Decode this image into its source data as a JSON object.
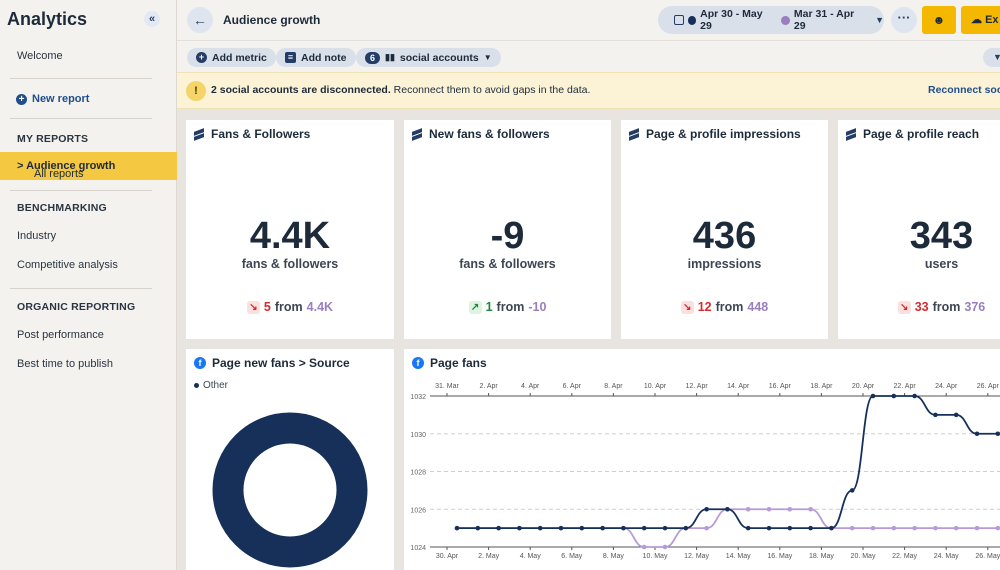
{
  "sidebar": {
    "title": "Analytics",
    "collapse_icon": "double-chevron-left-icon",
    "welcome": "Welcome",
    "new_report": "New report",
    "my_reports_heading": "MY REPORTS",
    "active_item_prefix": "All reports",
    "active_item_current": "> Audience growth",
    "benchmarking_heading": "BENCHMARKING",
    "industry": "Industry",
    "competitive": "Competitive analysis",
    "organic_heading": "ORGANIC REPORTING",
    "post_performance": "Post performance",
    "best_time": "Best time to publish"
  },
  "header": {
    "title": "Audience growth",
    "date_range_current": "Apr 30 - May 29",
    "date_range_previous": "Mar 31 - Apr 29",
    "more": "···",
    "export": "Ex"
  },
  "toolbar": {
    "add_metric": "Add metric",
    "add_note": "Add note",
    "accounts_count": "6",
    "accounts_label": "social accounts"
  },
  "alert": {
    "bold": "2 social accounts are disconnected.",
    "rest": " Reconnect them to avoid gaps in the data.",
    "link": "Reconnect socia"
  },
  "cards": [
    {
      "title": "Fans & Followers",
      "value": "4.4K",
      "unit": "fans & followers",
      "delta": "5",
      "from": "from",
      "prev": "4.4K",
      "dir": "down"
    },
    {
      "title": "New fans & followers",
      "value": "-9",
      "unit": "fans & followers",
      "delta": "1",
      "from": "from",
      "prev": "-10",
      "dir": "up"
    },
    {
      "title": "Page & profile impressions",
      "value": "436",
      "unit": "impressions",
      "delta": "12",
      "from": "from",
      "prev": "448",
      "dir": "down"
    },
    {
      "title": "Page & profile reach",
      "value": "343",
      "unit": "users",
      "delta": "33",
      "from": "from",
      "prev": "376",
      "dir": "down"
    }
  ],
  "source_card": {
    "title": "Page new fans > Source",
    "legend": "Other"
  },
  "colors": {
    "accent": "#f5c842",
    "navy": "#16305a",
    "previous": "#b79ad6"
  },
  "chart_data": {
    "type": "line",
    "title": "Page fans",
    "x_top": [
      "31. Mar",
      "2. Apr",
      "4. Apr",
      "6. Apr",
      "8. Apr",
      "10. Apr",
      "12. Apr",
      "14. Apr",
      "16. Apr",
      "18. Apr",
      "20. Apr",
      "22. Apr",
      "24. Apr",
      "26. Apr"
    ],
    "x_bottom": [
      "30. Apr",
      "2. May",
      "4. May",
      "6. May",
      "8. May",
      "10. May",
      "12. May",
      "14. May",
      "16. May",
      "18. May",
      "20. May",
      "22. May",
      "24. May",
      "26. May"
    ],
    "ylim": [
      1024,
      1032
    ],
    "yticks": [
      1024,
      1026,
      1028,
      1030,
      1032
    ],
    "series": [
      {
        "values": [
          1025,
          1025,
          1025,
          1025,
          1025,
          1025,
          1025,
          1025,
          1025,
          1025,
          1025,
          1025,
          1026,
          1026,
          1025,
          1025,
          1025,
          1025,
          1025,
          1027,
          1032,
          1032,
          1032,
          1031,
          1031,
          1030,
          1030,
          1030,
          1030,
          1030
        ]
      },
      {
        "values": [
          1025,
          1025,
          1025,
          1025,
          1025,
          1025,
          1025,
          1025,
          1025,
          1024,
          1024,
          1025,
          1025,
          1026,
          1026,
          1026,
          1026,
          1026,
          1025,
          1025,
          1025,
          1025,
          1025,
          1025,
          1025,
          1025,
          1025,
          1025,
          1025,
          1025
        ]
      }
    ]
  }
}
